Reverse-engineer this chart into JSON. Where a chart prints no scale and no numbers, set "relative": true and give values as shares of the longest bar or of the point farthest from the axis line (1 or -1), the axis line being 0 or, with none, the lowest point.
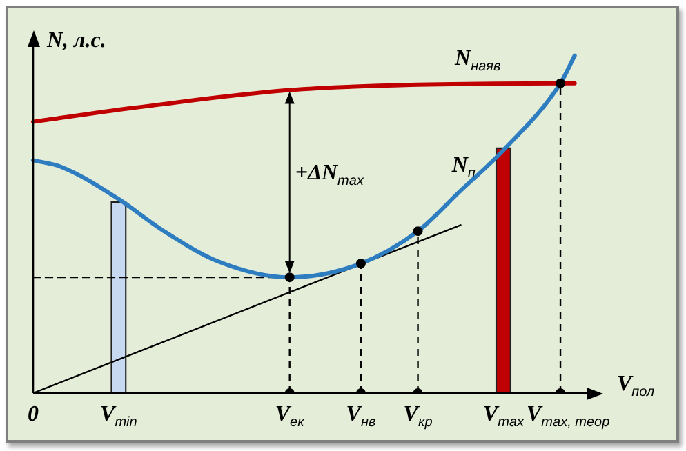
{
  "chart_data": {
    "type": "line",
    "relative": true,
    "ylabel": "N, л.с.",
    "xlabel": "V$_{пол}$",
    "categories": [
      "0",
      null,
      null,
      null,
      null,
      null,
      "V$_{min}$",
      null,
      null,
      null,
      null,
      null,
      null,
      null,
      null,
      null,
      null,
      null,
      "V$_{ек}$",
      null,
      null,
      null,
      null,
      "V$_{нв}$",
      null,
      null,
      null,
      "V$_{кр}$",
      null,
      null,
      null,
      null,
      null,
      "V$_{max}$",
      null,
      null,
      null,
      "V$_{max, теор}$",
      null,
      null,
      null
    ],
    "grid": false,
    "legend": false,
    "marker": "none",
    "line_style": "solid",
    "annotations": [
      "+ΔN$_{max}$"
    ],
    "series": [
      {
        "name": "N$_{наяв}$",
        "color": "#c00000",
        "values": [
          0.804,
          null,
          null,
          null,
          null,
          null,
          null,
          0.845,
          null,
          null,
          null,
          null,
          null,
          null,
          null,
          null,
          null,
          null,
          0.898,
          null,
          null,
          null,
          null,
          null,
          null,
          null,
          null,
          0.914,
          null,
          null,
          null,
          null,
          null,
          null,
          null,
          null,
          null,
          0.918,
          0.918,
          null,
          null
        ]
      },
      {
        "name": "N$_{п}$",
        "color": "#2e7dc0",
        "values": [
          0.69,
          null,
          0.67,
          null,
          null,
          null,
          0.575,
          null,
          null,
          0.485,
          null,
          null,
          null,
          0.39,
          null,
          null,
          null,
          null,
          0.343,
          null,
          null,
          null,
          null,
          0.384,
          null,
          null,
          null,
          0.48,
          null,
          null,
          0.6,
          null,
          null,
          0.72,
          null,
          null,
          null,
          0.918,
          1,
          null,
          null
        ]
      },
      {
        "color": "#000000",
        "values": [
          0,
          null,
          null,
          null,
          null,
          null,
          null,
          null,
          null,
          null,
          null,
          null,
          null,
          null,
          null,
          null,
          null,
          null,
          null,
          null,
          null,
          null,
          null,
          null,
          null,
          null,
          null,
          null,
          null,
          null,
          0.498,
          null,
          null,
          null,
          null,
          null,
          null,
          null,
          null,
          null,
          null
        ]
      },
      {
        "type": "bar",
        "colors": [
          null,
          null,
          null,
          null,
          null,
          null,
          "#c6d9f0",
          null,
          null,
          null,
          null,
          null,
          null,
          null,
          null,
          null,
          null,
          null,
          null,
          null,
          null,
          null,
          null,
          null,
          null,
          null,
          null,
          null,
          null,
          null,
          null,
          null,
          null,
          "#c00000",
          null,
          null,
          null,
          null,
          null,
          null,
          null
        ],
        "values": [
          null,
          null,
          null,
          null,
          null,
          null,
          0.567,
          null,
          null,
          null,
          null,
          null,
          null,
          null,
          null,
          null,
          null,
          null,
          null,
          null,
          null,
          null,
          null,
          null,
          null,
          null,
          null,
          null,
          null,
          null,
          null,
          null,
          null,
          0.727,
          null,
          null,
          null,
          null,
          null,
          null,
          null
        ]
      },
      {
        "color": "#000000",
        "line_style": "dashed",
        "values": [
          0.343,
          null,
          null,
          null,
          null,
          null,
          null,
          null,
          null,
          null,
          null,
          null,
          null,
          null,
          null,
          null,
          null,
          null,
          0.343,
          null,
          null,
          null,
          null,
          null,
          null,
          null,
          null,
          null,
          null,
          null,
          null,
          null,
          null,
          null,
          null,
          null,
          null,
          null,
          null,
          null,
          null
        ]
      },
      {
        "type": "lollipop",
        "color": "#000000",
        "line_style": "dashed",
        "marker": "circle",
        "values": [
          null,
          null,
          null,
          null,
          null,
          null,
          null,
          null,
          null,
          null,
          null,
          null,
          null,
          null,
          null,
          null,
          null,
          null,
          0.343,
          null,
          null,
          null,
          null,
          0.384,
          null,
          null,
          null,
          0.48,
          null,
          null,
          null,
          null,
          null,
          null,
          null,
          null,
          null,
          0.918,
          null,
          null,
          null
        ]
      },
      {
        "type": "scatter",
        "color": "#000000",
        "marker": "circle",
        "values": [
          null,
          null,
          null,
          null,
          null,
          null,
          null,
          null,
          null,
          null,
          null,
          null,
          null,
          null,
          null,
          null,
          null,
          null,
          0,
          null,
          null,
          null,
          null,
          0,
          null,
          null,
          null,
          0,
          null,
          null,
          null,
          null,
          null,
          null,
          null,
          null,
          null,
          0,
          null,
          null,
          null
        ]
      }
    ]
  }
}
